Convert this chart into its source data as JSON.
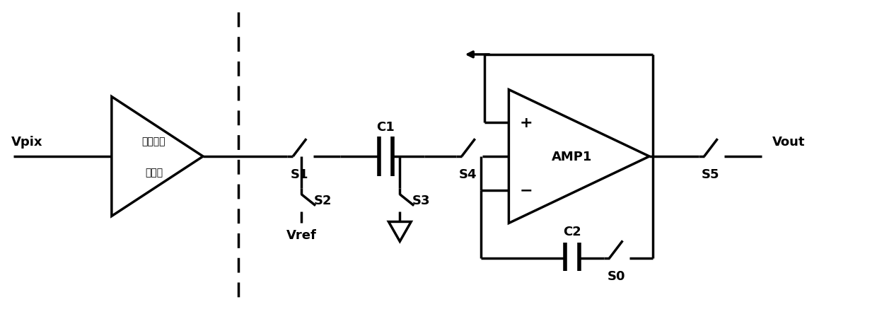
{
  "bg_color": "#ffffff",
  "line_color": "#000000",
  "lw": 2.5,
  "font_size": 13,
  "fig_width": 12.4,
  "fig_height": 4.52,
  "main_y": 23.0,
  "xlim": [
    0,
    124
  ],
  "ylim": [
    0,
    45.2
  ]
}
